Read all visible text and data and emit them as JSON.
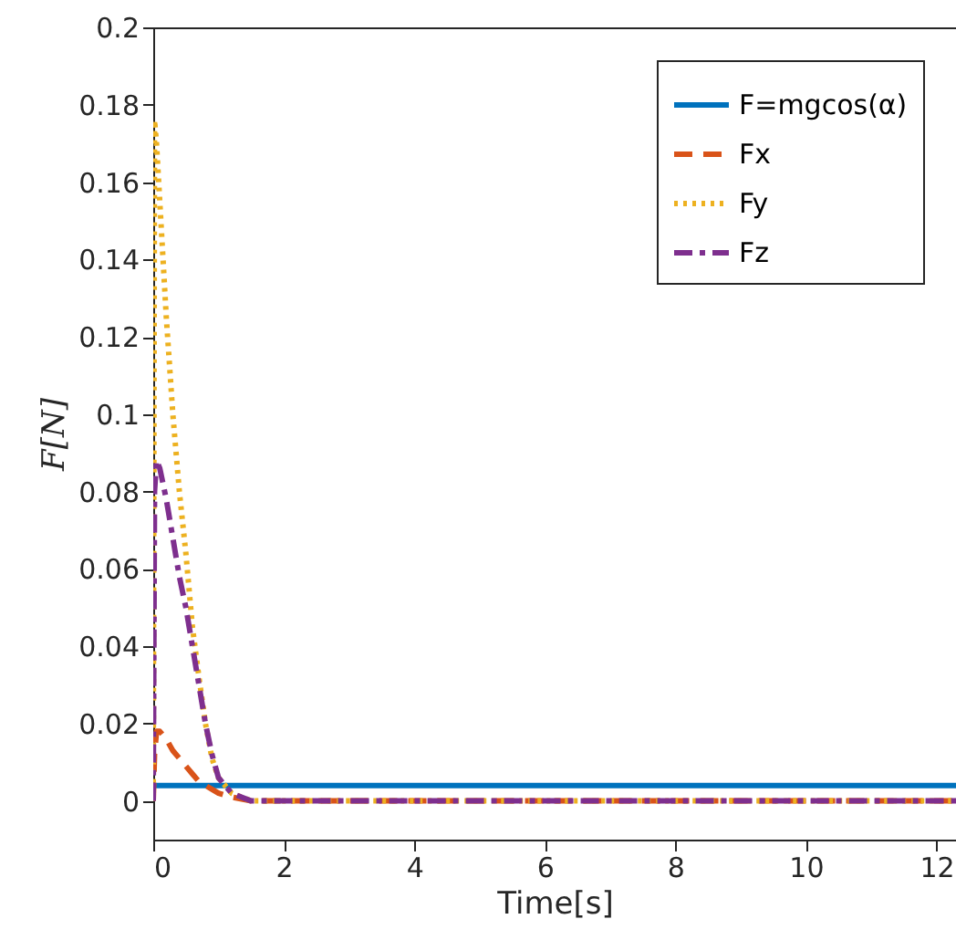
{
  "chart_data": {
    "type": "line",
    "xlabel": "Time[s]",
    "ylabel": "F[N]",
    "xlim": [
      0,
      12.3
    ],
    "ylim": [
      -0.01,
      0.2
    ],
    "xticks": [
      0,
      2,
      4,
      6,
      8,
      10,
      12
    ],
    "yticks": [
      0,
      0.02,
      0.04,
      0.06,
      0.08,
      0.1,
      0.12,
      0.14,
      0.16,
      0.18,
      0.2
    ],
    "grid": false,
    "legend": "top right",
    "series": [
      {
        "name": "F=mgcos(α)",
        "color": "#0072bd",
        "line_style": "solid",
        "x": [
          0,
          12.3
        ],
        "values": [
          0.004,
          0.004
        ]
      },
      {
        "name": "Fx",
        "color": "#d95319",
        "line_style": "dashed",
        "x": [
          0,
          0.02,
          0.05,
          0.1,
          0.2,
          0.3,
          0.4,
          0.5,
          0.6,
          0.7,
          0.8,
          0.9,
          1.0,
          1.2,
          1.5,
          2,
          12.3
        ],
        "values": [
          0,
          0.012,
          0.018,
          0.018,
          0.016,
          0.013,
          0.011,
          0.009,
          0.007,
          0.005,
          0.004,
          0.003,
          0.002,
          0.001,
          0,
          0,
          0
        ]
      },
      {
        "name": "Fy",
        "color": "#edb120",
        "line_style": "dotted",
        "x": [
          0,
          0.02,
          0.05,
          0.1,
          0.2,
          0.3,
          0.4,
          0.5,
          0.6,
          0.7,
          0.8,
          0.9,
          1.0,
          1.2,
          1.5,
          2,
          12.3
        ],
        "values": [
          0,
          0.176,
          0.17,
          0.155,
          0.125,
          0.1,
          0.08,
          0.064,
          0.045,
          0.032,
          0.02,
          0.011,
          0.006,
          0.002,
          0,
          0,
          0
        ]
      },
      {
        "name": "Fz",
        "color": "#7e2f8e",
        "line_style": "dashdot",
        "x": [
          0,
          0.02,
          0.05,
          0.1,
          0.2,
          0.3,
          0.4,
          0.5,
          0.6,
          0.7,
          0.8,
          0.9,
          1.0,
          1.2,
          1.5,
          2,
          12.3
        ],
        "values": [
          0,
          0.08,
          0.088,
          0.086,
          0.078,
          0.068,
          0.058,
          0.05,
          0.04,
          0.03,
          0.02,
          0.012,
          0.006,
          0.002,
          0,
          0,
          0
        ]
      }
    ]
  }
}
